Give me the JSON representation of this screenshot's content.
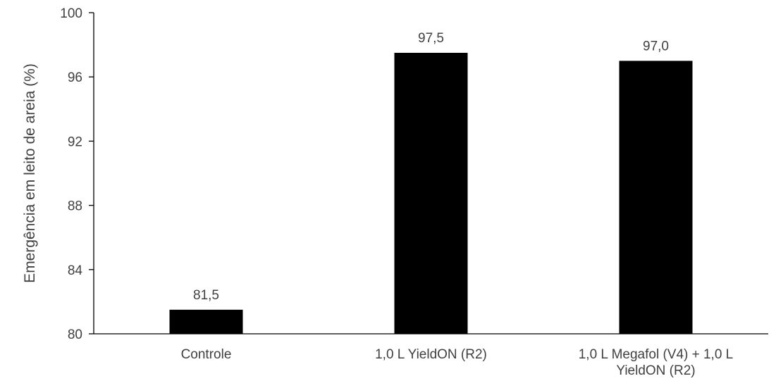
{
  "chart_data": {
    "type": "bar",
    "title": "",
    "xlabel": "",
    "ylabel": "Emergência em leito de areia (%)",
    "ylim": [
      80,
      100
    ],
    "yticks": [
      80,
      84,
      88,
      92,
      96,
      100
    ],
    "grid": false,
    "categories": [
      [
        "Controle"
      ],
      [
        "1,0 L YieldON (R2)"
      ],
      [
        "1,0 L Megafol (V4) + 1,0 L",
        "YieldON (R2)"
      ]
    ],
    "values": [
      81.5,
      97.5,
      97.0
    ],
    "data_labels": [
      "81,5",
      "97,5",
      "97,0"
    ],
    "colors": {
      "bar": "#000000",
      "axis": "#000000",
      "text": "#404040"
    }
  }
}
